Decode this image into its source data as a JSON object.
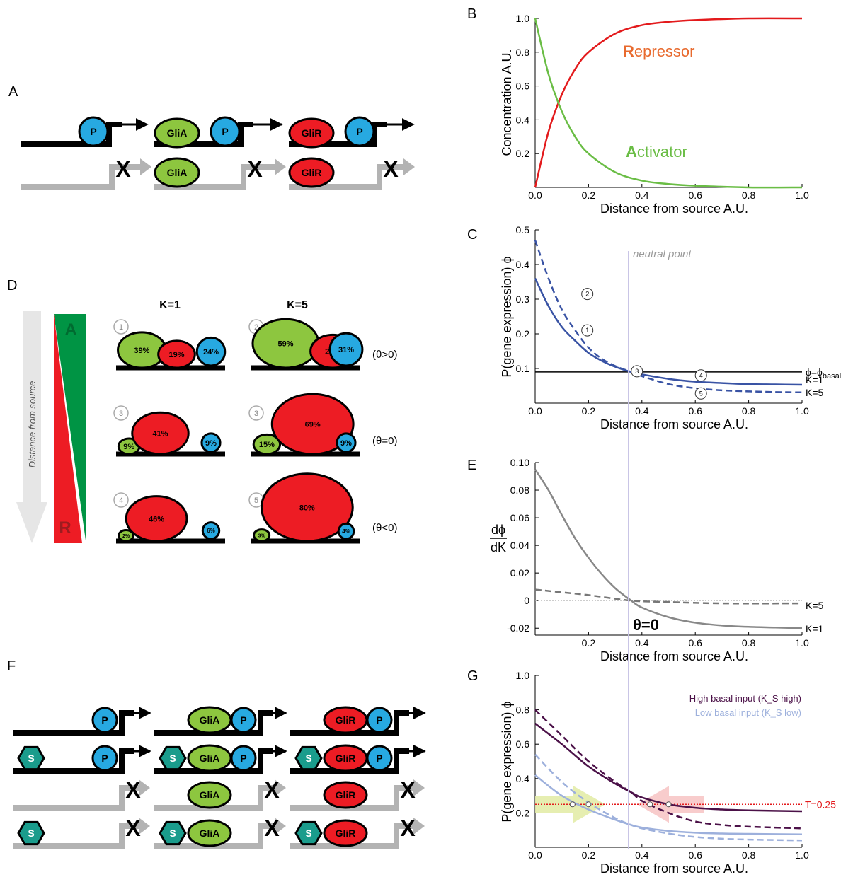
{
  "panels": {
    "A": "A",
    "B": "B",
    "C": "C",
    "D": "D",
    "E": "E",
    "F": "F",
    "G": "G"
  },
  "colors": {
    "blue": "#27a9e1",
    "green": "#8dc63f",
    "red": "#ed1c24",
    "teal": "#1a9c8c",
    "grey": "#b3b3b3",
    "dark_green": "#009444",
    "repressor_line": "#e31a1c",
    "activator_line": "#6abd45",
    "navy": "#3953a4",
    "purple": "#4b1148",
    "lilac": "#9db0dc",
    "threshold": "#e31a1c"
  },
  "molecules": {
    "P": "P",
    "GliA": "GliA",
    "GliR": "GliR",
    "S": "S",
    "X": "X"
  },
  "panel_d": {
    "arrow_label": "Distance from source",
    "A": "A",
    "R": "R",
    "k1": "K=1",
    "k5": "K=5",
    "rows": [
      {
        "theta": "(θ>0)",
        "k1_num": "1",
        "k5_num": "2",
        "k1": [
          "39%",
          "19%",
          "24%"
        ],
        "k5": [
          "59%",
          "28%",
          "31%"
        ]
      },
      {
        "theta": "(θ=0)",
        "k1_num": "3",
        "k5_num": "3",
        "k1": [
          "9%",
          "41%",
          "9%"
        ],
        "k5": [
          "15%",
          "69%",
          "9%"
        ]
      },
      {
        "theta": "(θ<0)",
        "k1_num": "4",
        "k5_num": "5",
        "k1": [
          "2%",
          "46%",
          "6%"
        ],
        "k5": [
          "3%",
          "80%",
          "4%"
        ]
      }
    ]
  },
  "neutral_point": "neutral point",
  "chart_data": [
    {
      "panel": "B",
      "type": "line",
      "xlabel": "Distance from source A.U.",
      "ylabel": "Concentration A.U.",
      "xlim": [
        0,
        1
      ],
      "ylim": [
        0,
        1
      ],
      "xticks": [
        "0.0",
        "0.2",
        "0.4",
        "0.6",
        "0.8",
        "1.0"
      ],
      "yticks": [
        "0.2",
        "0.4",
        "0.6",
        "0.8",
        "1.0"
      ],
      "series": [
        {
          "name": "Repressor",
          "first_letter": "R",
          "rest": "epressor",
          "x": [
            0,
            0.05,
            0.1,
            0.15,
            0.2,
            0.3,
            0.4,
            0.5,
            0.6,
            0.8,
            1.0
          ],
          "y": [
            0,
            0.33,
            0.55,
            0.7,
            0.8,
            0.91,
            0.96,
            0.98,
            0.99,
            1.0,
            1.0
          ]
        },
        {
          "name": "Activator",
          "first_letter": "A",
          "rest": "ctivator",
          "x": [
            0,
            0.05,
            0.1,
            0.15,
            0.2,
            0.3,
            0.4,
            0.5,
            0.6,
            0.8,
            1.0
          ],
          "y": [
            1.0,
            0.67,
            0.45,
            0.3,
            0.2,
            0.09,
            0.04,
            0.02,
            0.01,
            0.0,
            0.0
          ]
        }
      ]
    },
    {
      "panel": "C",
      "type": "line",
      "xlabel": "Distance from source A.U.",
      "ylabel": "P(gene expression) ϕ",
      "xlim": [
        0,
        1
      ],
      "ylim": [
        0,
        0.5
      ],
      "xticks": [
        "0.0",
        "0.2",
        "0.4",
        "0.6",
        "0.8",
        "1.0"
      ],
      "yticks": [
        "0.1",
        "0.2",
        "0.3",
        "0.4",
        "0.5"
      ],
      "series": [
        {
          "name": "K=1",
          "x": [
            0,
            0.05,
            0.1,
            0.15,
            0.2,
            0.25,
            0.3,
            0.36,
            0.4,
            0.5,
            0.6,
            0.7,
            0.8,
            0.9,
            1.0
          ],
          "y": [
            0.36,
            0.28,
            0.22,
            0.18,
            0.145,
            0.122,
            0.105,
            0.09,
            0.083,
            0.07,
            0.062,
            0.058,
            0.055,
            0.054,
            0.053
          ]
        },
        {
          "name": "K=5",
          "x": [
            0,
            0.05,
            0.1,
            0.15,
            0.2,
            0.25,
            0.3,
            0.36,
            0.4,
            0.5,
            0.6,
            0.7,
            0.8,
            0.9,
            1.0
          ],
          "y": [
            0.47,
            0.36,
            0.27,
            0.21,
            0.16,
            0.128,
            0.107,
            0.09,
            0.078,
            0.055,
            0.043,
            0.037,
            0.034,
            0.032,
            0.031
          ]
        },
        {
          "name": "ϕ=ϕ",
          "subscript": "basal",
          "x": [
            0,
            1
          ],
          "y": [
            0.09,
            0.09
          ]
        }
      ],
      "markers": [
        {
          "label": "1",
          "x": 0.1,
          "y": 0.21
        },
        {
          "label": "2",
          "x": 0.1,
          "y": 0.315
        },
        {
          "label": "3",
          "x": 0.36,
          "y": 0.092
        },
        {
          "label": "4",
          "x": 0.6,
          "y": 0.08
        },
        {
          "label": "5",
          "x": 0.6,
          "y": 0.028
        }
      ]
    },
    {
      "panel": "E",
      "type": "line",
      "xlabel": "Distance from source A.U.",
      "ylabel_num": "dϕ",
      "ylabel_den": "dK",
      "xlim": [
        0,
        1
      ],
      "ylim": [
        -0.025,
        0.1
      ],
      "xticks": [
        "0.2",
        "0.4",
        "0.6",
        "0.8",
        "1.0"
      ],
      "yticks": [
        "-0.02",
        "0",
        "0.02",
        "0.04",
        "0.06",
        "0.08",
        "0.10"
      ],
      "annotation": "θ=0",
      "series": [
        {
          "name": "K=1",
          "x": [
            0,
            0.05,
            0.1,
            0.15,
            0.2,
            0.25,
            0.3,
            0.36,
            0.4,
            0.5,
            0.6,
            0.7,
            0.8,
            0.9,
            1.0
          ],
          "y": [
            0.095,
            0.08,
            0.062,
            0.045,
            0.031,
            0.019,
            0.009,
            0.0,
            -0.005,
            -0.012,
            -0.016,
            -0.018,
            -0.019,
            -0.0195,
            -0.02
          ]
        },
        {
          "name": "K=5",
          "x": [
            0,
            0.1,
            0.2,
            0.36,
            0.5,
            0.7,
            1.0
          ],
          "y": [
            0.008,
            0.006,
            0.004,
            0.0,
            -0.001,
            -0.002,
            -0.002
          ]
        }
      ]
    },
    {
      "panel": "G",
      "type": "line",
      "xlabel": "Distance from source A.U.",
      "ylabel": "P(gene expression) ϕ",
      "xlim": [
        0,
        1
      ],
      "ylim": [
        0,
        1.0
      ],
      "xticks": [
        "0.0",
        "0.2",
        "0.4",
        "0.6",
        "0.8",
        "1.0"
      ],
      "yticks": [
        "0.2",
        "0.4",
        "0.6",
        "0.8",
        "1.0"
      ],
      "legend": [
        "High basal input (K_S high)",
        "Low basal input (K_S low)"
      ],
      "threshold": {
        "label": "T=0.25",
        "y": 0.25
      },
      "series": [
        {
          "name": "High basal input (K_S high)",
          "x": [
            0,
            0.1,
            0.2,
            0.3,
            0.36,
            0.4,
            0.5,
            0.6,
            0.7,
            0.8,
            1.0
          ],
          "y": [
            0.72,
            0.6,
            0.47,
            0.37,
            0.32,
            0.29,
            0.25,
            0.23,
            0.22,
            0.215,
            0.21
          ]
        },
        {
          "x": [
            0,
            0.1,
            0.2,
            0.3,
            0.36,
            0.4,
            0.5,
            0.6,
            0.7,
            0.8,
            1.0
          ],
          "y": [
            0.8,
            0.65,
            0.5,
            0.38,
            0.32,
            0.27,
            0.2,
            0.15,
            0.13,
            0.12,
            0.11
          ]
        },
        {
          "name": "Low basal input (K_S low)",
          "x": [
            0,
            0.1,
            0.2,
            0.3,
            0.36,
            0.4,
            0.5,
            0.6,
            0.7,
            0.8,
            1.0
          ],
          "y": [
            0.42,
            0.3,
            0.22,
            0.16,
            0.13,
            0.115,
            0.095,
            0.085,
            0.08,
            0.078,
            0.075
          ]
        },
        {
          "x": [
            0,
            0.1,
            0.2,
            0.3,
            0.36,
            0.4,
            0.5,
            0.6,
            0.7,
            0.8,
            1.0
          ],
          "y": [
            0.54,
            0.38,
            0.26,
            0.17,
            0.13,
            0.11,
            0.08,
            0.06,
            0.05,
            0.045,
            0.04
          ]
        }
      ],
      "points": [
        {
          "x": 0.14,
          "y": 0.25
        },
        {
          "x": 0.2,
          "y": 0.25
        },
        {
          "x": 0.43,
          "y": 0.25
        },
        {
          "x": 0.5,
          "y": 0.25
        }
      ]
    }
  ]
}
